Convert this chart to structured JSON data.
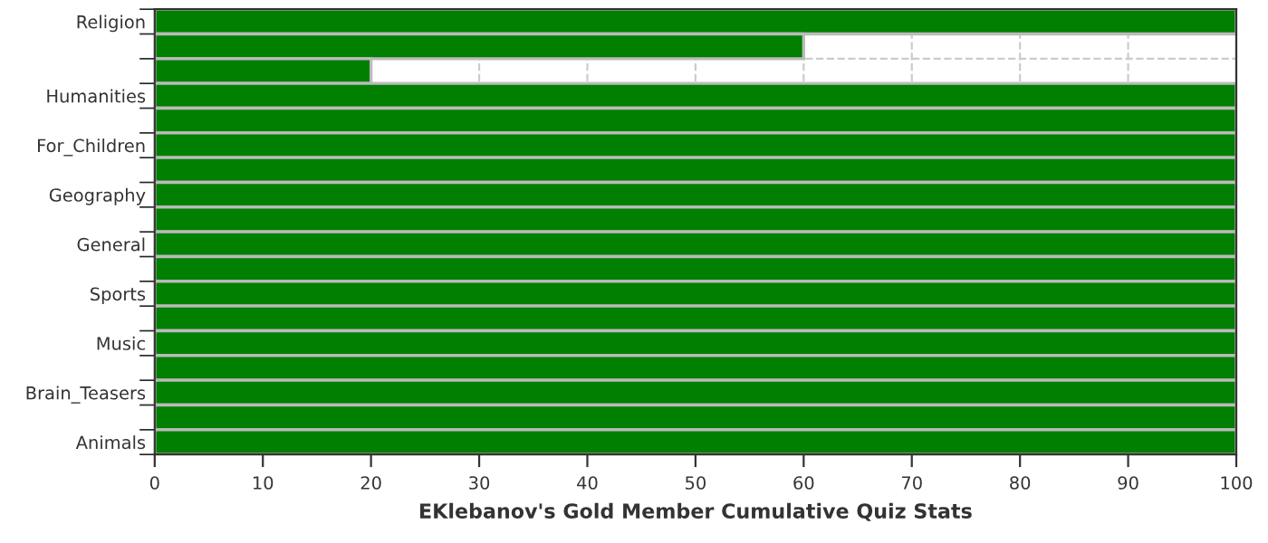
{
  "chart_data": {
    "type": "bar",
    "orientation": "horizontal",
    "xlabel": "EKlebanov's Gold Member Cumulative Quiz Stats",
    "categories": [
      "Religion",
      null,
      null,
      "Humanities",
      null,
      "For_Children",
      null,
      "Geography",
      null,
      "General",
      null,
      "Sports",
      null,
      "Music",
      null,
      "Brain_Teasers",
      null,
      "Animals"
    ],
    "values": [
      100,
      60,
      20,
      100,
      100,
      100,
      100,
      100,
      100,
      100,
      100,
      100,
      100,
      100,
      100,
      100,
      100,
      100
    ],
    "color": "#007f00",
    "xlim": [
      0,
      100
    ],
    "xticks": [
      0,
      10,
      20,
      30,
      40,
      50,
      60,
      70,
      80,
      90,
      100
    ],
    "grid": true
  }
}
